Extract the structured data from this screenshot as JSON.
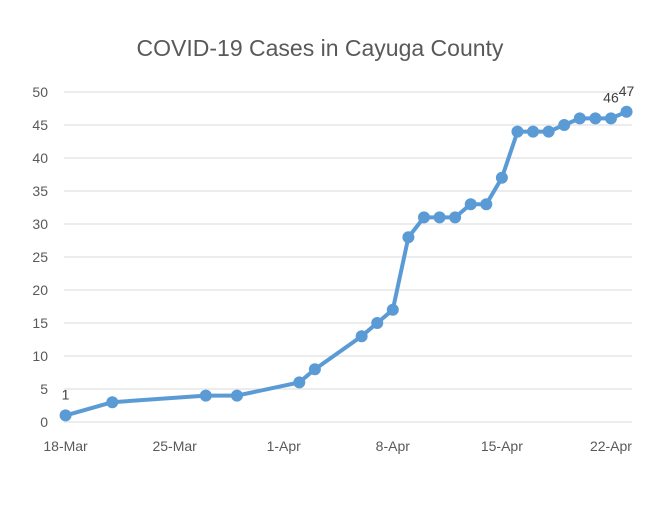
{
  "chart_data": {
    "type": "line",
    "title": "COVID-19 Cases in Cayuga County",
    "xlabel": "",
    "ylabel": "",
    "ylim": [
      0,
      50
    ],
    "yticks": [
      0,
      5,
      10,
      15,
      20,
      25,
      30,
      35,
      40,
      45,
      50
    ],
    "xlim": [
      "18-Mar",
      "23-Apr"
    ],
    "xticks": [
      "18-Mar",
      "25-Mar",
      "1-Apr",
      "8-Apr",
      "15-Apr",
      "22-Apr"
    ],
    "grid": true,
    "legend": "none",
    "color": "#5b9bd5",
    "series": [
      {
        "x": [
          "18-Mar",
          "21-Mar",
          "27-Mar",
          "29-Mar",
          "2-Apr",
          "3-Apr",
          "6-Apr",
          "7-Apr",
          "8-Apr",
          "9-Apr",
          "10-Apr",
          "11-Apr",
          "12-Apr",
          "13-Apr",
          "14-Apr",
          "15-Apr",
          "16-Apr",
          "17-Apr",
          "18-Apr",
          "19-Apr",
          "20-Apr",
          "21-Apr",
          "22-Apr",
          "23-Apr"
        ],
        "values": [
          1,
          3,
          4,
          4,
          6,
          8,
          13,
          15,
          17,
          28,
          31,
          31,
          31,
          33,
          33,
          37,
          44,
          44,
          44,
          45,
          46,
          46,
          46,
          47
        ]
      }
    ],
    "data_labels": [
      {
        "x": "18-Mar",
        "text": "1"
      },
      {
        "x": "22-Apr",
        "text": "46"
      },
      {
        "x": "23-Apr",
        "text": "47"
      }
    ]
  }
}
